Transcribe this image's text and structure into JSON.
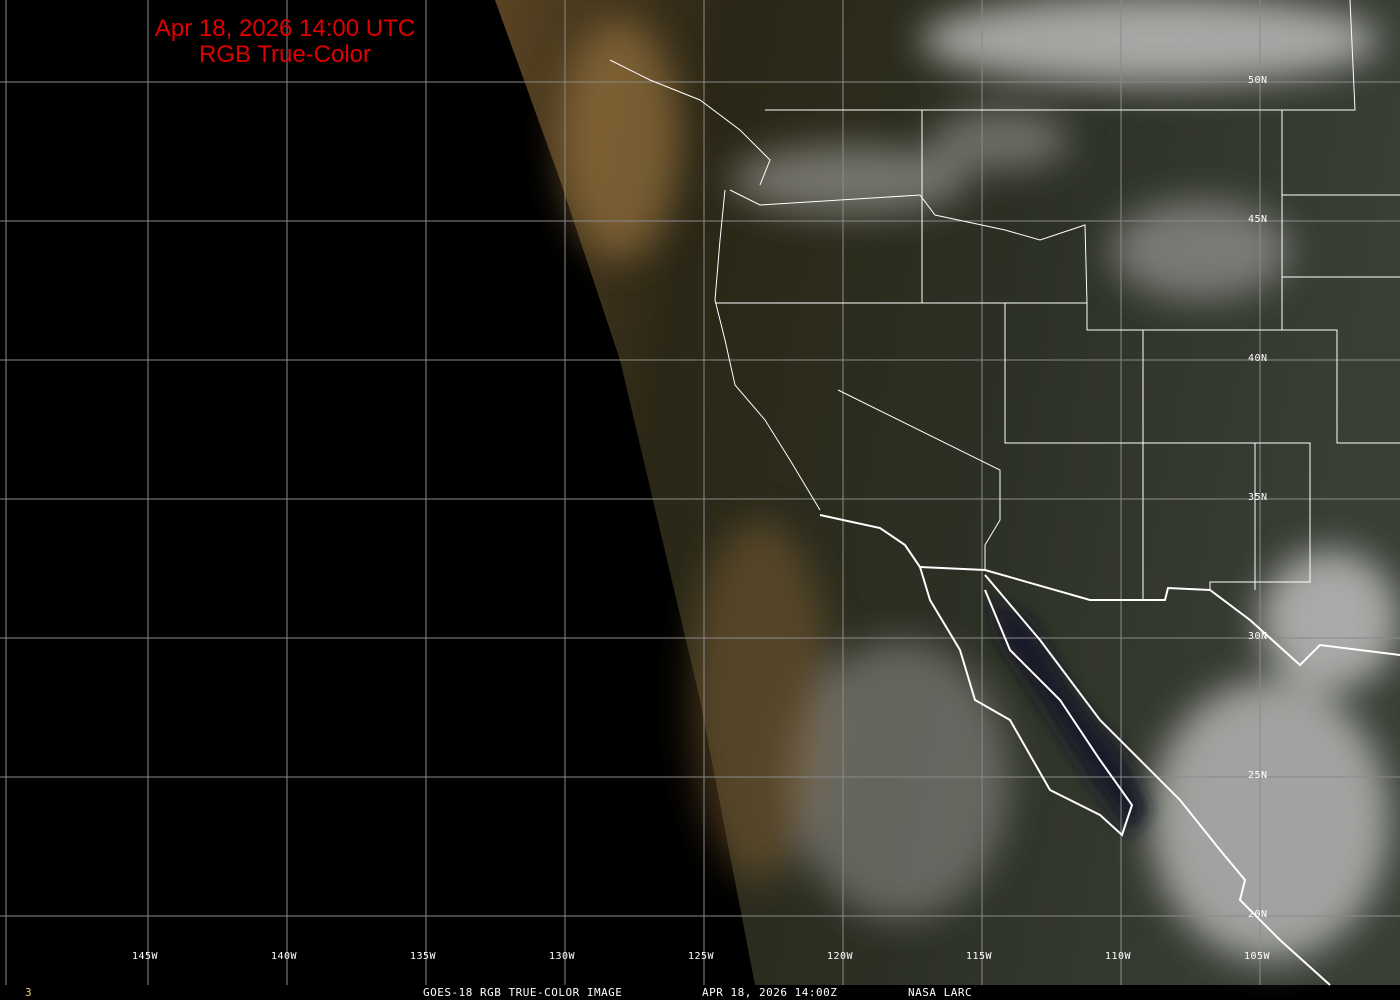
{
  "title": {
    "line1": "Apr 18, 2026 14:00 UTC",
    "line2": "RGB True-Color"
  },
  "lat_labels": [
    "50N",
    "45N",
    "40N",
    "35N",
    "30N",
    "25N",
    "20N"
  ],
  "lon_labels": [
    "145W",
    "140W",
    "135W",
    "130W",
    "125W",
    "120W",
    "115W",
    "110W",
    "105W"
  ],
  "footer": {
    "frame_number": "3",
    "product": "GOES-18 RGB TRUE-COLOR IMAGE",
    "timestamp": "APR 18, 2026 14:00Z",
    "source": "NASA LARC"
  },
  "colors": {
    "title": "#e00000",
    "frame_number": "#e8d27a",
    "grid": "#8a8a8a",
    "boundaries": "#ffffff"
  }
}
